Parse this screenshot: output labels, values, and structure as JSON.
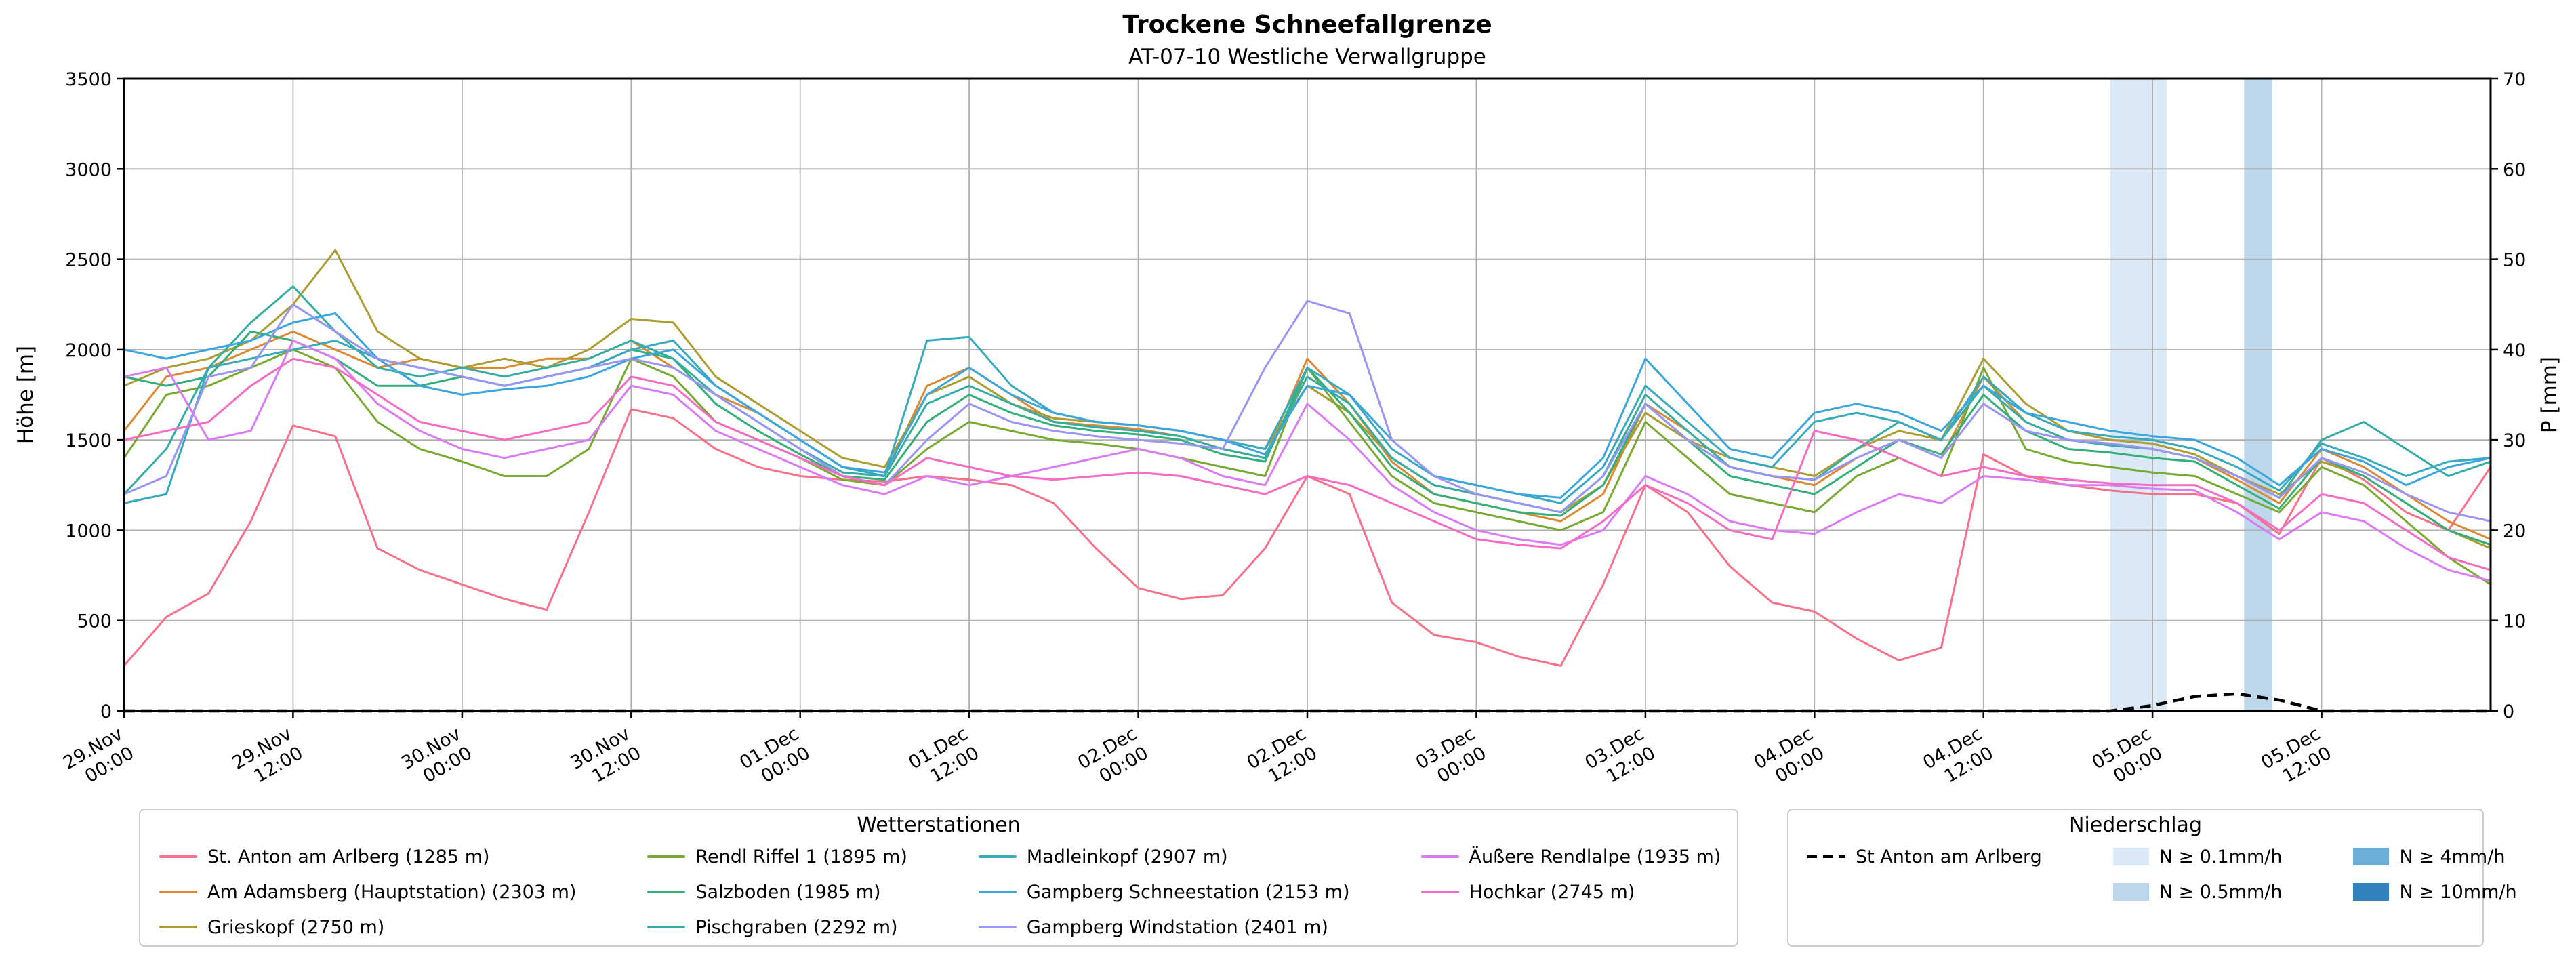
{
  "header": {
    "title": "Trockene Schneefallgrenze",
    "subtitle": "AT-07-10 Westliche Verwallgruppe"
  },
  "chart_data": {
    "type": "line",
    "title": "Trockene Schneefallgrenze",
    "subtitle": "AT-07-10 Westliche Verwallgruppe",
    "ylabel_left": "Höhe [m]",
    "ylim_left": [
      0,
      3500
    ],
    "ytick_step_left": 500,
    "ylabel_right": "P [mm]",
    "ylim_right": [
      0,
      70
    ],
    "ytick_step_right": 10,
    "x_start": "29.Nov 00:00",
    "x_total_hours": 168,
    "x_step_hours": 3,
    "x_tick_step_hours": 12,
    "grid": true,
    "x_tick_labels": [
      [
        "29.Nov",
        "00:00"
      ],
      [
        "29.Nov",
        "12:00"
      ],
      [
        "30.Nov",
        "00:00"
      ],
      [
        "30.Nov",
        "12:00"
      ],
      [
        "01.Dec",
        "00:00"
      ],
      [
        "01.Dec",
        "12:00"
      ],
      [
        "02.Dec",
        "00:00"
      ],
      [
        "02.Dec",
        "12:00"
      ],
      [
        "03.Dec",
        "00:00"
      ],
      [
        "03.Dec",
        "12:00"
      ],
      [
        "04.Dec",
        "00:00"
      ],
      [
        "04.Dec",
        "12:00"
      ],
      [
        "05.Dec",
        "00:00"
      ],
      [
        "05.Dec",
        "12:00"
      ]
    ],
    "series": [
      {
        "name": "St. Anton am Arlberg (1285 m)",
        "color": "#f77189",
        "values": [
          250,
          520,
          650,
          1050,
          1580,
          1520,
          900,
          780,
          700,
          620,
          560,
          1100,
          1670,
          1620,
          1450,
          1350,
          1300,
          1280,
          1270,
          1300,
          1280,
          1250,
          1150,
          900,
          680,
          620,
          640,
          900,
          1300,
          1200,
          600,
          420,
          380,
          300,
          250,
          700,
          1250,
          1100,
          800,
          600,
          550,
          400,
          280,
          350,
          1420,
          1300,
          1250,
          1220,
          1200,
          1200,
          1150,
          980,
          1400,
          1280,
          1100,
          1000,
          1350
        ]
      },
      {
        "name": "Am Adamsberg (Hauptstation) (2303 m)",
        "color": "#dc8932",
        "values": [
          1550,
          1850,
          1900,
          2000,
          2100,
          2000,
          1900,
          1950,
          1900,
          1900,
          1950,
          1950,
          2050,
          1900,
          1750,
          1650,
          1500,
          1350,
          1300,
          1800,
          1900,
          1750,
          1600,
          1580,
          1560,
          1520,
          1450,
          1400,
          1950,
          1700,
          1380,
          1200,
          1150,
          1100,
          1050,
          1200,
          1700,
          1550,
          1350,
          1300,
          1250,
          1400,
          1500,
          1400,
          1850,
          1600,
          1500,
          1480,
          1450,
          1400,
          1280,
          1150,
          1450,
          1350,
          1200,
          1050,
          950
        ]
      },
      {
        "name": "Grieskopf (2750 m)",
        "color": "#ad9c31",
        "values": [
          1800,
          1900,
          1950,
          2050,
          2250,
          2550,
          2100,
          1950,
          1900,
          1950,
          1900,
          2000,
          2170,
          2150,
          1850,
          1700,
          1550,
          1400,
          1350,
          1750,
          1850,
          1700,
          1620,
          1600,
          1580,
          1550,
          1500,
          1450,
          1800,
          1650,
          1400,
          1250,
          1200,
          1150,
          1100,
          1250,
          1650,
          1500,
          1400,
          1350,
          1300,
          1450,
          1550,
          1500,
          1950,
          1700,
          1550,
          1500,
          1480,
          1420,
          1300,
          1200,
          1380,
          1300,
          1150,
          1000,
          900
        ]
      },
      {
        "name": "Rendl Riffel 1 (1895 m)",
        "color": "#77aa31",
        "values": [
          1400,
          1750,
          1800,
          1900,
          2000,
          1900,
          1600,
          1450,
          1380,
          1300,
          1300,
          1450,
          1950,
          1850,
          1600,
          1500,
          1400,
          1280,
          1250,
          1450,
          1600,
          1550,
          1500,
          1480,
          1450,
          1400,
          1350,
          1300,
          1900,
          1600,
          1300,
          1150,
          1100,
          1050,
          1000,
          1100,
          1600,
          1400,
          1200,
          1150,
          1100,
          1300,
          1400,
          1300,
          1900,
          1450,
          1380,
          1350,
          1320,
          1300,
          1200,
          1100,
          1350,
          1250,
          1050,
          850,
          700
        ]
      },
      {
        "name": "Salzboden (1985 m)",
        "color": "#33b07a",
        "values": [
          1850,
          1800,
          1850,
          2100,
          2050,
          1950,
          1800,
          1800,
          1850,
          1800,
          1850,
          1900,
          2000,
          1950,
          1700,
          1550,
          1420,
          1300,
          1280,
          1600,
          1750,
          1650,
          1580,
          1550,
          1530,
          1500,
          1420,
          1380,
          1900,
          1650,
          1350,
          1200,
          1150,
          1100,
          1080,
          1250,
          1700,
          1500,
          1300,
          1250,
          1200,
          1350,
          1500,
          1420,
          1750,
          1550,
          1450,
          1430,
          1400,
          1380,
          1250,
          1120,
          1400,
          1300,
          1150,
          1000,
          920
        ]
      },
      {
        "name": "Pischgraben (2292 m)",
        "color": "#36ada4",
        "values": [
          1200,
          1450,
          1900,
          2150,
          2350,
          2100,
          1900,
          1850,
          1900,
          1850,
          1900,
          1950,
          2050,
          1950,
          1750,
          1600,
          1450,
          1320,
          1300,
          1700,
          1800,
          1700,
          1600,
          1570,
          1550,
          1520,
          1450,
          1400,
          1850,
          1700,
          1400,
          1250,
          1200,
          1150,
          1100,
          1300,
          1750,
          1550,
          1350,
          1300,
          1280,
          1450,
          1600,
          1500,
          1800,
          1600,
          1500,
          1470,
          1450,
          1400,
          1300,
          1180,
          1500,
          1600,
          1450,
          1300,
          1380
        ]
      },
      {
        "name": "Madleinkopf (2907 m)",
        "color": "#38aabe",
        "values": [
          1150,
          1200,
          1900,
          1950,
          2000,
          2050,
          1950,
          1900,
          1850,
          1800,
          1850,
          1900,
          2000,
          2050,
          1800,
          1650,
          1500,
          1350,
          1300,
          2050,
          2070,
          1800,
          1650,
          1600,
          1580,
          1550,
          1500,
          1450,
          1900,
          1750,
          1450,
          1300,
          1250,
          1200,
          1150,
          1350,
          1800,
          1600,
          1400,
          1350,
          1600,
          1650,
          1600,
          1500,
          1850,
          1650,
          1550,
          1520,
          1500,
          1450,
          1350,
          1220,
          1480,
          1400,
          1300,
          1380,
          1400
        ]
      },
      {
        "name": "Gampberg Schneestation (2153 m)",
        "color": "#3ba6de",
        "values": [
          2000,
          1950,
          2000,
          2050,
          2150,
          2200,
          1950,
          1800,
          1750,
          1780,
          1800,
          1850,
          1950,
          2000,
          1800,
          1650,
          1500,
          1350,
          1320,
          1750,
          1900,
          1750,
          1650,
          1600,
          1580,
          1550,
          1500,
          1420,
          1800,
          1750,
          1500,
          1300,
          1250,
          1200,
          1180,
          1400,
          1950,
          1700,
          1450,
          1400,
          1650,
          1700,
          1650,
          1550,
          1800,
          1650,
          1600,
          1550,
          1520,
          1500,
          1400,
          1250,
          1450,
          1380,
          1250,
          1350,
          1400
        ]
      },
      {
        "name": "Gampberg Windstation (2401 m)",
        "color": "#9895f5",
        "values": [
          1200,
          1300,
          1850,
          1900,
          2250,
          2100,
          1950,
          1900,
          1850,
          1800,
          1850,
          1900,
          1950,
          1900,
          1750,
          1600,
          1450,
          1300,
          1250,
          1500,
          1700,
          1600,
          1550,
          1520,
          1500,
          1480,
          1450,
          1900,
          2270,
          2200,
          1500,
          1300,
          1200,
          1150,
          1100,
          1300,
          1700,
          1500,
          1350,
          1300,
          1280,
          1400,
          1500,
          1400,
          1700,
          1550,
          1500,
          1480,
          1450,
          1400,
          1300,
          1180,
          1400,
          1320,
          1200,
          1100,
          1050
        ]
      },
      {
        "name": "Äußere Rendlalpe (1935 m)",
        "color": "#da7af4",
        "values": [
          1850,
          1900,
          1500,
          1550,
          2050,
          1950,
          1700,
          1550,
          1450,
          1400,
          1450,
          1500,
          1800,
          1750,
          1550,
          1450,
          1350,
          1250,
          1200,
          1300,
          1250,
          1300,
          1350,
          1400,
          1450,
          1400,
          1300,
          1250,
          1700,
          1500,
          1250,
          1100,
          1000,
          950,
          920,
          1000,
          1300,
          1200,
          1050,
          1000,
          980,
          1100,
          1200,
          1150,
          1300,
          1280,
          1250,
          1250,
          1230,
          1220,
          1100,
          950,
          1100,
          1050,
          900,
          780,
          720
        ]
      },
      {
        "name": "Hochkar (2745 m)",
        "color": "#f66bc3",
        "values": [
          1500,
          1550,
          1600,
          1800,
          1950,
          1900,
          1750,
          1600,
          1550,
          1500,
          1550,
          1600,
          1850,
          1800,
          1600,
          1500,
          1400,
          1300,
          1250,
          1400,
          1350,
          1300,
          1280,
          1300,
          1320,
          1300,
          1250,
          1200,
          1300,
          1250,
          1150,
          1050,
          950,
          920,
          900,
          1050,
          1250,
          1150,
          1000,
          950,
          1550,
          1500,
          1400,
          1300,
          1350,
          1300,
          1280,
          1260,
          1250,
          1250,
          1150,
          1000,
          1200,
          1150,
          1000,
          850,
          780
        ]
      }
    ],
    "precipitation_line": {
      "name": "St Anton am Arlberg",
      "axis": "right",
      "style": "dashed",
      "color": "#000000",
      "values": [
        0,
        0,
        0,
        0,
        0,
        0,
        0,
        0,
        0,
        0,
        0,
        0,
        0,
        0,
        0,
        0,
        0,
        0,
        0,
        0,
        0,
        0,
        0,
        0,
        0,
        0,
        0,
        0,
        0,
        0,
        0,
        0,
        0,
        0,
        0,
        0,
        0,
        0,
        0,
        0,
        0,
        0,
        0,
        0,
        0,
        0,
        0,
        0,
        0.6,
        1.6,
        1.9,
        1.2,
        0,
        0,
        0,
        0,
        0
      ]
    },
    "precip_bands": [
      {
        "start_hour": 141,
        "end_hour": 145,
        "label": "N ≥ 0.1mm/h",
        "color": "#dbe9f6"
      },
      {
        "start_hour": 150.5,
        "end_hour": 152.5,
        "label": "N ≥ 0.5mm/h",
        "color": "#bdd7ec"
      }
    ]
  },
  "legend_stations": {
    "title": "Wetterstationen"
  },
  "legend_precip": {
    "title": "Niederschlag",
    "line_label": "St Anton am Arlberg",
    "levels": [
      {
        "label": "N ≥ 0.1mm/h",
        "color": "#dbe9f6"
      },
      {
        "label": "N ≥ 0.5mm/h",
        "color": "#bdd7ec"
      },
      {
        "label": "N ≥ 4mm/h",
        "color": "#6baed6"
      },
      {
        "label": "N ≥ 10mm/h",
        "color": "#3182bd"
      }
    ]
  }
}
